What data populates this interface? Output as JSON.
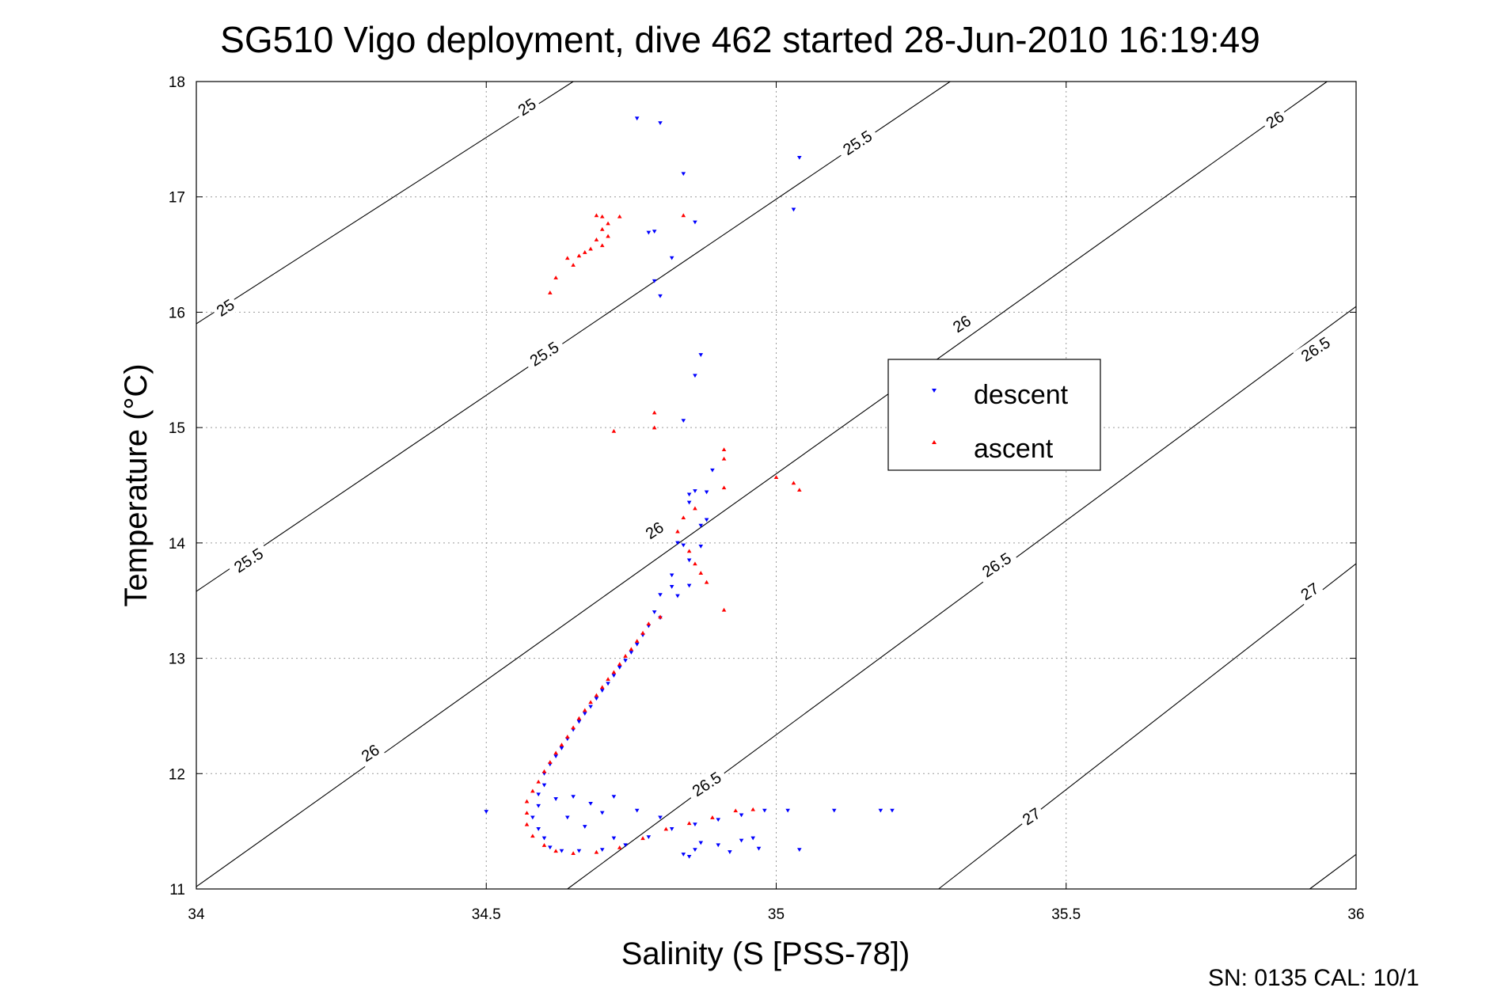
{
  "chart_data": {
    "type": "scatter",
    "title": "SG510 Vigo deployment, dive 462 started 28-Jun-2010 16:19:49",
    "xlabel": "Salinity (S [PSS-78])",
    "ylabel": "Temperature (°C)",
    "xlim": [
      34,
      36
    ],
    "ylim": [
      11,
      18
    ],
    "xticks": [
      "34",
      "34.5",
      "35",
      "35.5",
      "36"
    ],
    "yticks": [
      "11",
      "12",
      "13",
      "14",
      "15",
      "16",
      "17",
      "18"
    ],
    "grid": true,
    "legend_position": "right-center",
    "footer": "SN: 0135  CAL: 10/1",
    "contours": [
      {
        "value": 25,
        "label": "25",
        "points": [
          [
            34.0,
            15.9
          ],
          [
            34.65,
            18.0
          ]
        ]
      },
      {
        "value": 25.5,
        "label": "25.5",
        "points": [
          [
            34.0,
            13.58
          ],
          [
            35.3,
            18.0
          ]
        ]
      },
      {
        "value": 26,
        "label": "26",
        "points": [
          [
            34.0,
            11.02
          ],
          [
            35.95,
            18.0
          ]
        ]
      },
      {
        "value": 26.5,
        "label": "26.5",
        "points": [
          [
            34.64,
            11.0
          ],
          [
            36.0,
            16.05
          ]
        ]
      },
      {
        "value": 27,
        "label": "27",
        "points": [
          [
            35.28,
            11.0
          ],
          [
            36.0,
            13.82
          ]
        ]
      },
      {
        "value": 27.5,
        "label": "",
        "points": [
          [
            35.92,
            11.0
          ],
          [
            36.0,
            11.3
          ]
        ]
      }
    ],
    "contour_labels": [
      {
        "text": "25",
        "x": 34.57,
        "y": 17.78,
        "angle": -33
      },
      {
        "text": "25",
        "x": 34.05,
        "y": 16.04,
        "angle": -33
      },
      {
        "text": "25.5",
        "x": 35.14,
        "y": 17.47,
        "angle": -33
      },
      {
        "text": "25.5",
        "x": 34.6,
        "y": 15.64,
        "angle": -33
      },
      {
        "text": "25.5",
        "x": 34.09,
        "y": 13.85,
        "angle": -33
      },
      {
        "text": "26",
        "x": 35.86,
        "y": 17.67,
        "angle": -33
      },
      {
        "text": "26",
        "x": 35.32,
        "y": 15.9,
        "angle": -33
      },
      {
        "text": "26",
        "x": 34.79,
        "y": 14.11,
        "angle": -33
      },
      {
        "text": "26",
        "x": 34.3,
        "y": 12.18,
        "angle": -33
      },
      {
        "text": "26.5",
        "x": 35.93,
        "y": 15.68,
        "angle": -33
      },
      {
        "text": "26.5",
        "x": 35.38,
        "y": 13.81,
        "angle": -33
      },
      {
        "text": "26.5",
        "x": 34.88,
        "y": 11.91,
        "angle": -33
      },
      {
        "text": "27",
        "x": 35.92,
        "y": 13.58,
        "angle": -33
      },
      {
        "text": "27",
        "x": 35.44,
        "y": 11.63,
        "angle": -33
      }
    ],
    "series": [
      {
        "name": "descent",
        "color": "#0000ff",
        "marker": "triangle-down",
        "points": [
          [
            34.76,
            17.68
          ],
          [
            34.8,
            17.64
          ],
          [
            35.04,
            17.34
          ],
          [
            34.84,
            17.2
          ],
          [
            35.03,
            16.89
          ],
          [
            34.86,
            16.78
          ],
          [
            34.79,
            16.7
          ],
          [
            34.78,
            16.69
          ],
          [
            34.82,
            16.47
          ],
          [
            34.79,
            16.27
          ],
          [
            34.8,
            16.14
          ],
          [
            34.87,
            15.63
          ],
          [
            34.86,
            15.45
          ],
          [
            34.84,
            15.06
          ],
          [
            34.89,
            14.63
          ],
          [
            34.86,
            14.45
          ],
          [
            34.88,
            14.44
          ],
          [
            34.85,
            14.42
          ],
          [
            34.85,
            14.35
          ],
          [
            34.88,
            14.2
          ],
          [
            34.87,
            14.15
          ],
          [
            34.83,
            14.0
          ],
          [
            34.84,
            13.98
          ],
          [
            34.87,
            13.97
          ],
          [
            34.85,
            13.85
          ],
          [
            34.82,
            13.72
          ],
          [
            34.82,
            13.62
          ],
          [
            34.85,
            13.63
          ],
          [
            34.8,
            13.55
          ],
          [
            34.83,
            13.54
          ],
          [
            34.79,
            13.4
          ],
          [
            34.8,
            13.35
          ],
          [
            34.78,
            13.28
          ],
          [
            34.77,
            13.2
          ],
          [
            34.76,
            13.12
          ],
          [
            34.75,
            13.05
          ],
          [
            34.74,
            12.98
          ],
          [
            34.73,
            12.92
          ],
          [
            34.72,
            12.85
          ],
          [
            34.71,
            12.78
          ],
          [
            34.7,
            12.72
          ],
          [
            34.69,
            12.65
          ],
          [
            34.68,
            12.58
          ],
          [
            34.67,
            12.52
          ],
          [
            34.66,
            12.45
          ],
          [
            34.65,
            12.38
          ],
          [
            34.64,
            12.3
          ],
          [
            34.63,
            12.22
          ],
          [
            34.62,
            12.15
          ],
          [
            34.61,
            12.08
          ],
          [
            34.6,
            12.0
          ],
          [
            34.6,
            11.9
          ],
          [
            34.59,
            11.82
          ],
          [
            34.59,
            11.72
          ],
          [
            34.58,
            11.62
          ],
          [
            34.59,
            11.52
          ],
          [
            34.6,
            11.44
          ],
          [
            34.61,
            11.36
          ],
          [
            34.63,
            11.33
          ],
          [
            34.66,
            11.33
          ],
          [
            34.7,
            11.34
          ],
          [
            34.74,
            11.38
          ],
          [
            34.78,
            11.45
          ],
          [
            34.82,
            11.52
          ],
          [
            34.86,
            11.56
          ],
          [
            34.9,
            11.6
          ],
          [
            34.94,
            11.64
          ],
          [
            34.98,
            11.68
          ],
          [
            35.02,
            11.68
          ],
          [
            35.1,
            11.68
          ],
          [
            35.18,
            11.68
          ],
          [
            35.2,
            11.68
          ],
          [
            34.5,
            11.67
          ],
          [
            34.62,
            11.78
          ],
          [
            34.65,
            11.8
          ],
          [
            34.68,
            11.74
          ],
          [
            34.7,
            11.66
          ],
          [
            34.72,
            11.8
          ],
          [
            34.76,
            11.68
          ],
          [
            34.8,
            11.62
          ],
          [
            34.84,
            11.3
          ],
          [
            34.86,
            11.34
          ],
          [
            34.9,
            11.38
          ],
          [
            34.94,
            11.42
          ],
          [
            34.96,
            11.44
          ],
          [
            34.97,
            11.35
          ],
          [
            35.04,
            11.34
          ],
          [
            34.85,
            11.28
          ],
          [
            34.87,
            11.4
          ],
          [
            34.64,
            11.62
          ],
          [
            34.67,
            11.54
          ],
          [
            34.72,
            11.44
          ],
          [
            34.92,
            11.32
          ]
        ]
      },
      {
        "name": "ascent",
        "color": "#ff0000",
        "marker": "triangle-up",
        "points": [
          [
            34.69,
            16.84
          ],
          [
            34.7,
            16.83
          ],
          [
            34.73,
            16.83
          ],
          [
            34.84,
            16.84
          ],
          [
            34.71,
            16.77
          ],
          [
            34.7,
            16.72
          ],
          [
            34.71,
            16.66
          ],
          [
            34.69,
            16.63
          ],
          [
            34.7,
            16.58
          ],
          [
            34.68,
            16.55
          ],
          [
            34.67,
            16.52
          ],
          [
            34.66,
            16.49
          ],
          [
            34.64,
            16.47
          ],
          [
            34.65,
            16.41
          ],
          [
            34.62,
            16.3
          ],
          [
            34.61,
            16.17
          ],
          [
            34.79,
            15.13
          ],
          [
            34.79,
            15.0
          ],
          [
            34.72,
            14.97
          ],
          [
            34.91,
            14.81
          ],
          [
            34.91,
            14.73
          ],
          [
            35.0,
            14.57
          ],
          [
            35.03,
            14.52
          ],
          [
            35.04,
            14.46
          ],
          [
            34.91,
            14.48
          ],
          [
            34.86,
            14.3
          ],
          [
            34.84,
            14.22
          ],
          [
            34.83,
            14.1
          ],
          [
            34.85,
            13.93
          ],
          [
            34.86,
            13.82
          ],
          [
            34.87,
            13.74
          ],
          [
            34.88,
            13.66
          ],
          [
            34.91,
            13.42
          ],
          [
            34.8,
            13.36
          ],
          [
            34.78,
            13.3
          ],
          [
            34.77,
            13.22
          ],
          [
            34.76,
            13.15
          ],
          [
            34.75,
            13.08
          ],
          [
            34.74,
            13.02
          ],
          [
            34.73,
            12.95
          ],
          [
            34.72,
            12.88
          ],
          [
            34.71,
            12.82
          ],
          [
            34.7,
            12.75
          ],
          [
            34.69,
            12.68
          ],
          [
            34.68,
            12.62
          ],
          [
            34.67,
            12.55
          ],
          [
            34.66,
            12.48
          ],
          [
            34.65,
            12.4
          ],
          [
            34.64,
            12.32
          ],
          [
            34.63,
            12.25
          ],
          [
            34.62,
            12.18
          ],
          [
            34.61,
            12.1
          ],
          [
            34.6,
            12.02
          ],
          [
            34.59,
            11.93
          ],
          [
            34.58,
            11.85
          ],
          [
            34.57,
            11.76
          ],
          [
            34.57,
            11.66
          ],
          [
            34.57,
            11.56
          ],
          [
            34.58,
            11.46
          ],
          [
            34.6,
            11.38
          ],
          [
            34.62,
            11.33
          ],
          [
            34.65,
            11.31
          ],
          [
            34.69,
            11.32
          ],
          [
            34.73,
            11.36
          ],
          [
            34.77,
            11.44
          ],
          [
            34.81,
            11.52
          ],
          [
            34.85,
            11.57
          ],
          [
            34.89,
            11.62
          ],
          [
            34.93,
            11.68
          ],
          [
            34.96,
            11.69
          ]
        ]
      }
    ]
  }
}
